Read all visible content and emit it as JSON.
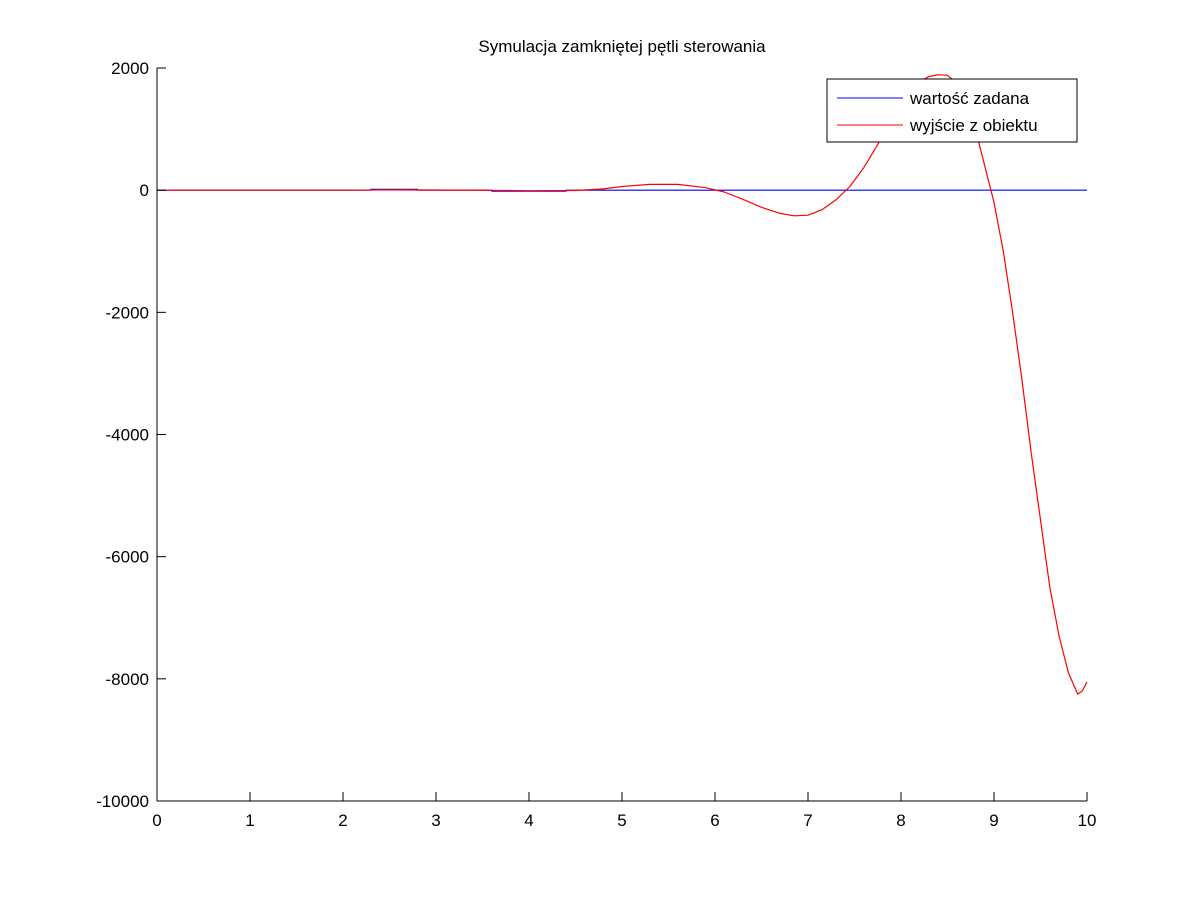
{
  "chart_data": {
    "type": "line",
    "title": "Symulacja zamkniętej pętli sterowania",
    "xlabel": "",
    "ylabel": "",
    "xlim": [
      0,
      10
    ],
    "ylim": [
      -10000,
      2000
    ],
    "x_ticks": [
      0,
      1,
      2,
      3,
      4,
      5,
      6,
      7,
      8,
      9,
      10
    ],
    "x_tick_labels": [
      "0",
      "1",
      "2",
      "3",
      "4",
      "5",
      "6",
      "7",
      "8",
      "9",
      "10"
    ],
    "y_ticks": [
      2000,
      0,
      -2000,
      -4000,
      -6000,
      -8000,
      -10000
    ],
    "y_tick_labels": [
      "2000",
      "0",
      "-2000",
      "-4000",
      "-6000",
      "-8000",
      "-10000"
    ],
    "grid": false,
    "legend_position": "top-right",
    "series": [
      {
        "name": "wartość zadana",
        "color": "#0000ff",
        "x": [
          0,
          2.3,
          2.3,
          2.8,
          2.8,
          3.6,
          3.6,
          4.4,
          4.4,
          10
        ],
        "y": [
          0,
          0,
          15,
          15,
          0,
          0,
          -15,
          -15,
          0,
          0
        ]
      },
      {
        "name": "wyjście z obiektu",
        "color": "#ff0000",
        "x": [
          0,
          1,
          2,
          2.5,
          3,
          3.5,
          4,
          4.5,
          4.8,
          5,
          5.3,
          5.6,
          5.9,
          6.1,
          6.3,
          6.5,
          6.7,
          6.85,
          7,
          7.15,
          7.3,
          7.45,
          7.6,
          7.75,
          7.9,
          8.05,
          8.2,
          8.3,
          8.4,
          8.5,
          8.6,
          8.7,
          8.8,
          8.9,
          9,
          9.1,
          9.2,
          9.3,
          9.4,
          9.5,
          9.6,
          9.7,
          9.8,
          9.9,
          9.95,
          10
        ],
        "y": [
          0,
          0,
          0,
          5,
          3,
          -2,
          -8,
          -5,
          20,
          60,
          95,
          95,
          40,
          -30,
          -150,
          -280,
          -380,
          -420,
          -410,
          -320,
          -160,
          60,
          370,
          750,
          1150,
          1500,
          1780,
          1860,
          1890,
          1880,
          1750,
          1500,
          1000,
          400,
          -200,
          -1000,
          -2000,
          -3100,
          -4300,
          -5400,
          -6500,
          -7300,
          -7900,
          -8250,
          -8200,
          -8050
        ]
      }
    ]
  }
}
